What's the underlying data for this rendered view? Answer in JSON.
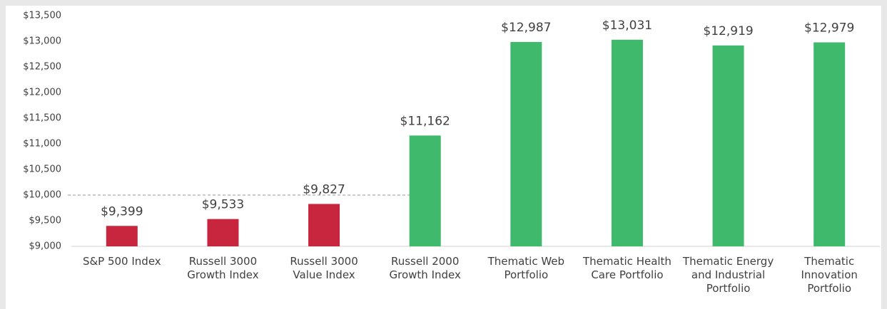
{
  "chart_data": {
    "type": "bar",
    "categories": [
      "S&P 500 Index",
      "Russell 3000 Growth Index",
      "Russell 3000 Value Index",
      "Russell 2000 Growth Index",
      "Thematic Web Portfolio",
      "Thematic Health Care Portfolio",
      "Thematic Energy and Industrial Portfolio",
      "Thematic Innovation Portfolio"
    ],
    "values": [
      9399,
      9533,
      9827,
      11162,
      12987,
      13031,
      12919,
      12979
    ],
    "value_labels": [
      "$9,399",
      "$9,533",
      "$9,827",
      "$11,162",
      "$12,987",
      "$13,031",
      "$12,919",
      "$12,979"
    ],
    "colors": [
      "#c8253f",
      "#c8253f",
      "#c8253f",
      "#3fb96b",
      "#3fb96b",
      "#3fb96b",
      "#3fb96b",
      "#3fb96b"
    ],
    "ylim": [
      9000,
      13500
    ],
    "yticks": [
      {
        "value": 9000,
        "label": "$9,000"
      },
      {
        "value": 9500,
        "label": "$9,500"
      },
      {
        "value": 10000,
        "label": "$10,000"
      },
      {
        "value": 10500,
        "label": "$10,500"
      },
      {
        "value": 11000,
        "label": "$11,000"
      },
      {
        "value": 11500,
        "label": "$11,500"
      },
      {
        "value": 12000,
        "label": "$12,000"
      },
      {
        "value": 12500,
        "label": "$12,500"
      },
      {
        "value": 13000,
        "label": "$13,000"
      },
      {
        "value": 13500,
        "label": "$13,500"
      }
    ],
    "reference_line": 10000,
    "grid": false
  }
}
